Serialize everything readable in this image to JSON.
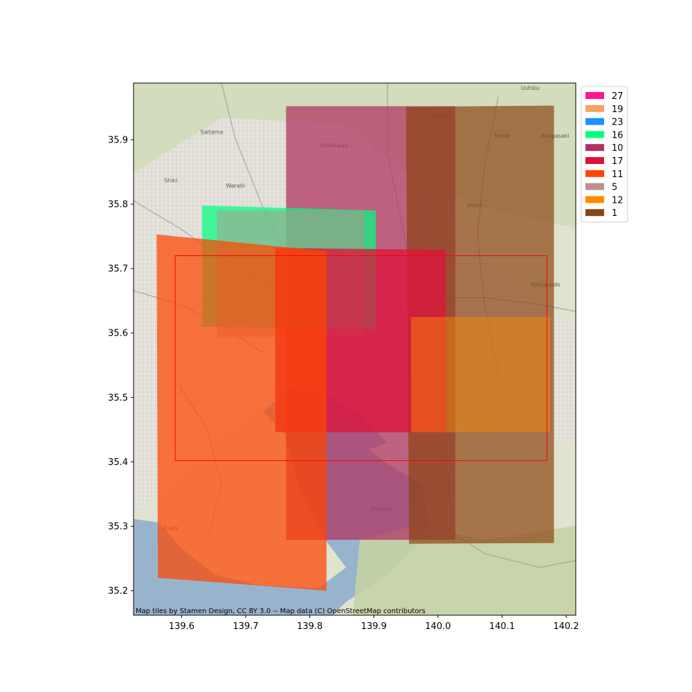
{
  "chart_data": {
    "type": "map",
    "attribution": "Map tiles by Stamen Design, CC BY 3.0 -- Map data (C) OpenStreetMap contributors",
    "xlim": [
      139.525,
      140.215
    ],
    "ylim": [
      35.162,
      35.988
    ],
    "xticks": [
      139.6,
      139.7,
      139.8,
      139.9,
      140.0,
      140.1,
      140.2
    ],
    "xtick_labels": [
      "139.6",
      "139.7",
      "139.8",
      "139.9",
      "140.0",
      "140.1",
      "140.2"
    ],
    "yticks": [
      35.2,
      35.3,
      35.4,
      35.5,
      35.6,
      35.7,
      35.8,
      35.9
    ],
    "ytick_labels": [
      "35.2",
      "35.3",
      "35.4",
      "35.5",
      "35.6",
      "35.7",
      "35.8",
      "35.9"
    ],
    "legend_position": "upper-right-outside",
    "legend": [
      {
        "label": "27",
        "color": "#ff1493"
      },
      {
        "label": "19",
        "color": "#f4a460"
      },
      {
        "label": "23",
        "color": "#1e90ff"
      },
      {
        "label": "16",
        "color": "#00ff7f"
      },
      {
        "label": "10",
        "color": "#b03060"
      },
      {
        "label": "17",
        "color": "#dc143c"
      },
      {
        "label": "11",
        "color": "#ff4500"
      },
      {
        "label": "5",
        "color": "#bc8f8f"
      },
      {
        "label": "12",
        "color": "#ff8c00"
      },
      {
        "label": "1",
        "color": "#8b4513"
      }
    ],
    "footprints": [
      {
        "label": "10",
        "color": "#b03060",
        "opacity": 0.72,
        "polygon": [
          [
            139.763,
            35.952
          ],
          [
            140.027,
            35.952
          ],
          [
            140.027,
            35.279
          ],
          [
            139.763,
            35.279
          ]
        ]
      },
      {
        "label": "1",
        "color": "#8b4513",
        "opacity": 0.7,
        "polygon": [
          [
            139.95,
            35.951
          ],
          [
            140.181,
            35.953
          ],
          [
            140.181,
            35.274
          ],
          [
            139.955,
            35.273
          ]
        ]
      },
      {
        "label": "16",
        "color": "#00ff7f",
        "opacity": 0.72,
        "polygon": [
          [
            139.632,
            35.798
          ],
          [
            139.903,
            35.79
          ],
          [
            139.903,
            35.606
          ],
          [
            139.632,
            35.61
          ]
        ]
      },
      {
        "label": "5",
        "color": "#bc8f8f",
        "opacity": 0.5,
        "polygon": [
          [
            139.655,
            35.79
          ],
          [
            139.885,
            35.79
          ],
          [
            139.885,
            35.594
          ],
          [
            139.655,
            35.594
          ]
        ]
      },
      {
        "label": "17",
        "color": "#dc143c",
        "opacity": 0.78,
        "polygon": [
          [
            139.746,
            35.732
          ],
          [
            140.012,
            35.729
          ],
          [
            140.012,
            35.446
          ],
          [
            139.746,
            35.446
          ]
        ]
      },
      {
        "label": "11",
        "color": "#ff4500",
        "opacity": 0.72,
        "polygon": [
          [
            139.561,
            35.753
          ],
          [
            139.826,
            35.727
          ],
          [
            139.826,
            35.2
          ],
          [
            139.563,
            35.22
          ]
        ]
      },
      {
        "label": "12",
        "color": "#ff8c00",
        "opacity": 0.45,
        "polygon": [
          [
            139.958,
            35.625
          ],
          [
            140.175,
            35.625
          ],
          [
            140.175,
            35.446
          ],
          [
            139.958,
            35.446
          ]
        ]
      }
    ],
    "aoi_box": {
      "color": "#ff0000",
      "polygon": [
        [
          139.59,
          35.72
        ],
        [
          140.17,
          35.72
        ],
        [
          140.17,
          35.402
        ],
        [
          139.59,
          35.402
        ]
      ]
    },
    "place_labels": [
      {
        "text": "Ushiku",
        "lon": 140.144,
        "lat": 35.977
      },
      {
        "text": "Noriya",
        "lon": 140.005,
        "lat": 35.933
      },
      {
        "text": "Saitama",
        "lon": 139.647,
        "lat": 35.909
      },
      {
        "text": "Yoshikawa",
        "lon": 139.838,
        "lat": 35.888
      },
      {
        "text": "Toride",
        "lon": 140.1,
        "lat": 35.903
      },
      {
        "text": "Ryugasaki",
        "lon": 140.183,
        "lat": 35.903
      },
      {
        "text": "Shiki",
        "lon": 139.583,
        "lat": 35.834
      },
      {
        "text": "Warabi",
        "lon": 139.684,
        "lat": 35.826
      },
      {
        "text": "Shiroi",
        "lon": 140.057,
        "lat": 35.795
      },
      {
        "text": "Yotsukaido",
        "lon": 140.168,
        "lat": 35.672
      },
      {
        "text": "Kimitsu",
        "lon": 139.912,
        "lat": 35.324
      },
      {
        "text": "Zushi",
        "lon": 139.583,
        "lat": 35.294
      }
    ]
  }
}
